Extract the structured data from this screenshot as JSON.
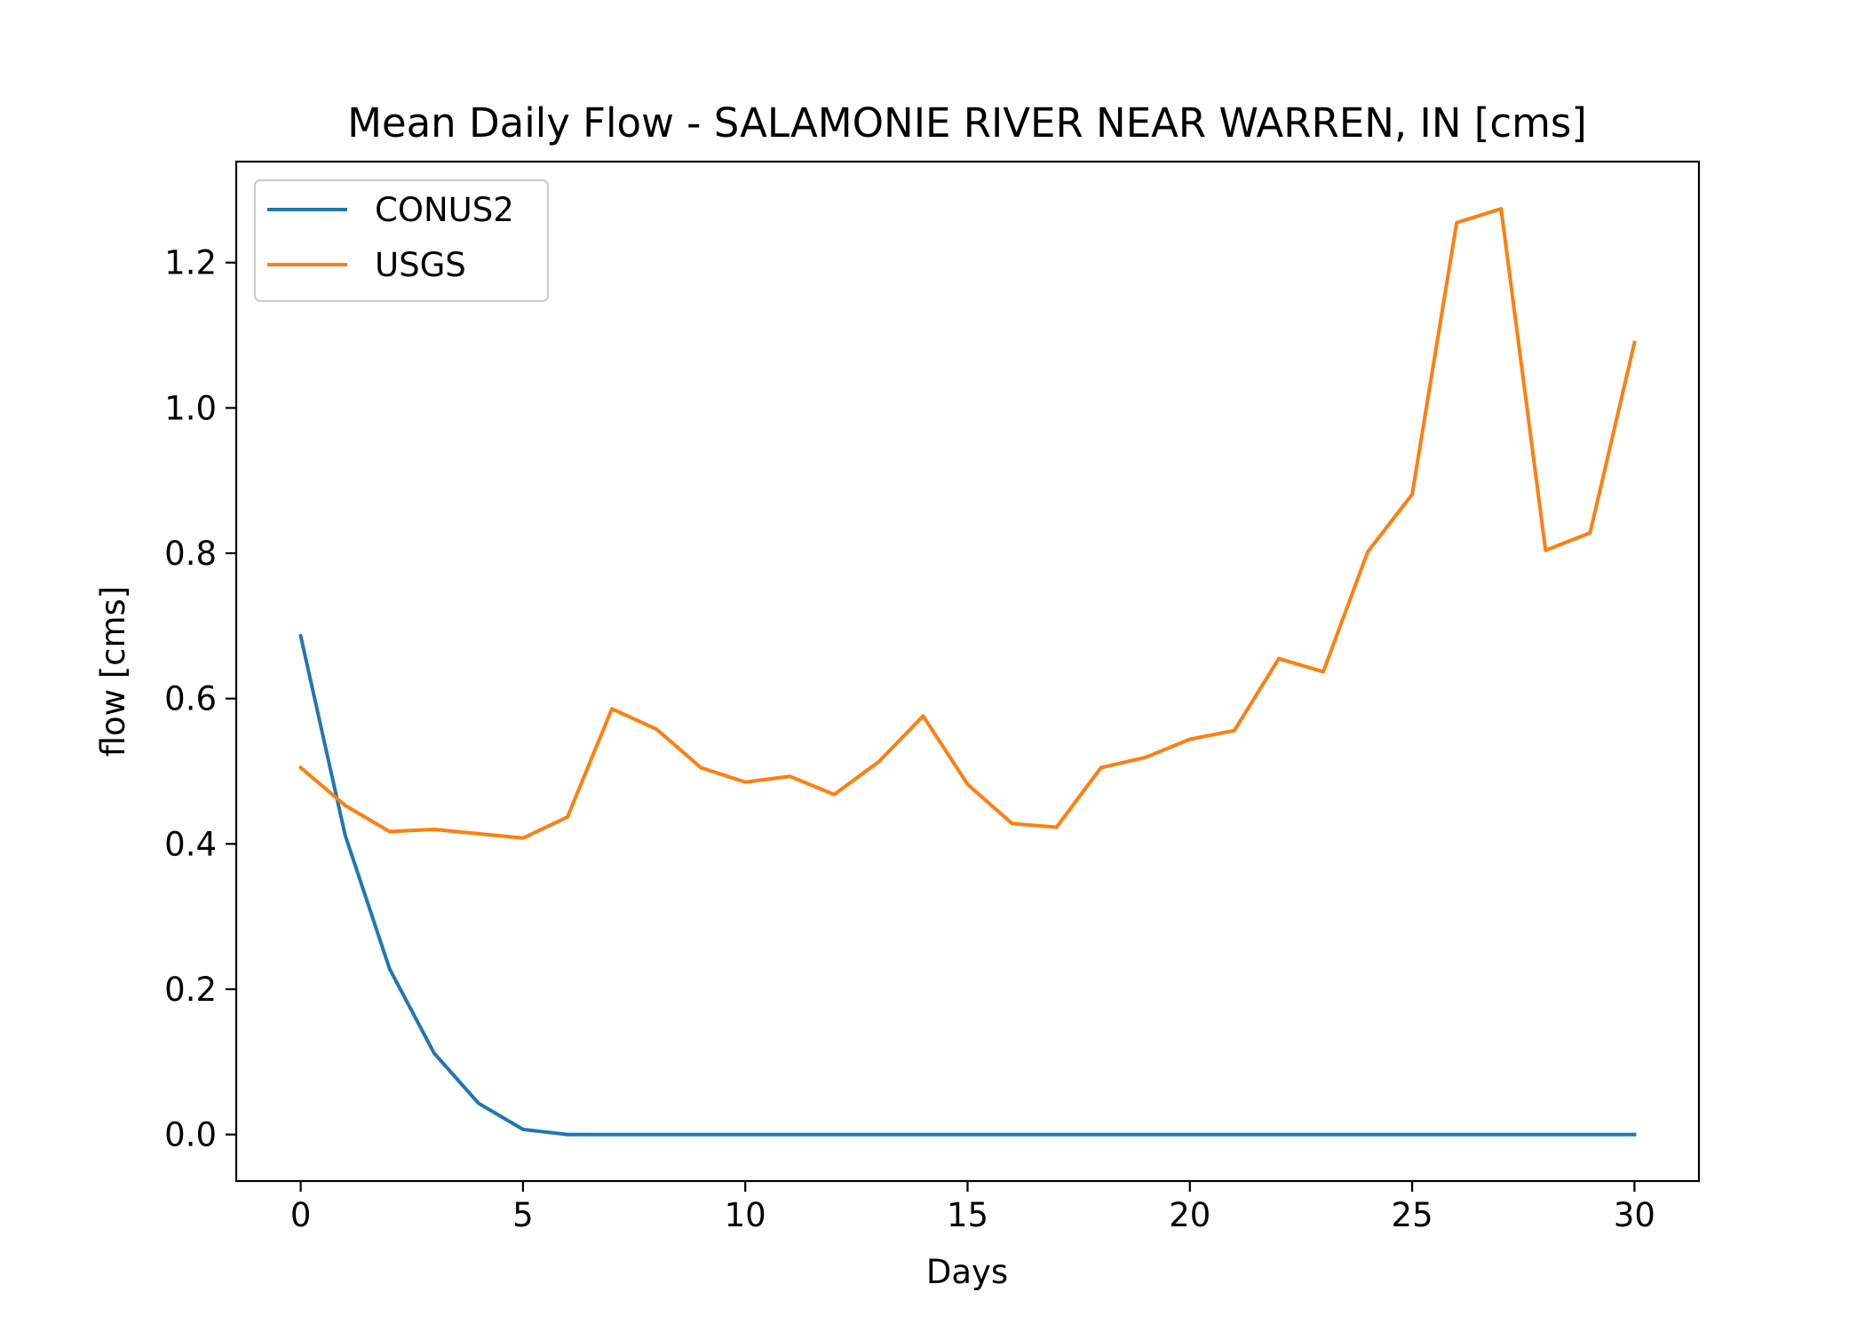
{
  "chart_data": {
    "type": "line",
    "title": "Mean Daily Flow - SALAMONIE RIVER NEAR WARREN, IN [cms]",
    "xlabel": "Days",
    "ylabel": "flow [cms]",
    "xlim": [
      -1.45,
      31.45
    ],
    "ylim": [
      -0.064,
      1.339
    ],
    "xticks": [
      0,
      5,
      10,
      15,
      20,
      25,
      30
    ],
    "yticks": [
      0.0,
      0.2,
      0.4,
      0.6,
      0.8,
      1.0,
      1.2
    ],
    "xtick_labels": [
      "0",
      "5",
      "10",
      "15",
      "20",
      "25",
      "30"
    ],
    "ytick_labels": [
      "0.0",
      "0.2",
      "0.4",
      "0.6",
      "0.8",
      "1.0",
      "1.2"
    ],
    "grid": false,
    "legend": "upper-left",
    "x": [
      0,
      1,
      2,
      3,
      4,
      5,
      6,
      7,
      8,
      9,
      10,
      11,
      12,
      13,
      14,
      15,
      16,
      17,
      18,
      19,
      20,
      21,
      22,
      23,
      24,
      25,
      26,
      27,
      28,
      29,
      30
    ],
    "series": [
      {
        "name": "CONUS2",
        "color": "#1f77b4",
        "values": [
          0.686,
          0.412,
          0.228,
          0.112,
          0.043,
          0.007,
          0.0,
          0.0,
          0.0,
          0.0,
          0.0,
          0.0,
          0.0,
          0.0,
          0.0,
          0.0,
          0.0,
          0.0,
          0.0,
          0.0,
          0.0,
          0.0,
          0.0,
          0.0,
          0.0,
          0.0,
          0.0,
          0.0,
          0.0,
          0.0,
          0.0
        ]
      },
      {
        "name": "USGS",
        "color": "#ff7f0e",
        "values": [
          0.505,
          0.453,
          0.417,
          0.42,
          0.414,
          0.408,
          0.437,
          0.586,
          0.558,
          0.505,
          0.485,
          0.493,
          0.468,
          0.513,
          0.576,
          0.482,
          0.428,
          0.423,
          0.505,
          0.519,
          0.544,
          0.556,
          0.655,
          0.637,
          0.802,
          0.881,
          1.255,
          1.274,
          0.804,
          0.828,
          1.09
        ]
      }
    ]
  }
}
